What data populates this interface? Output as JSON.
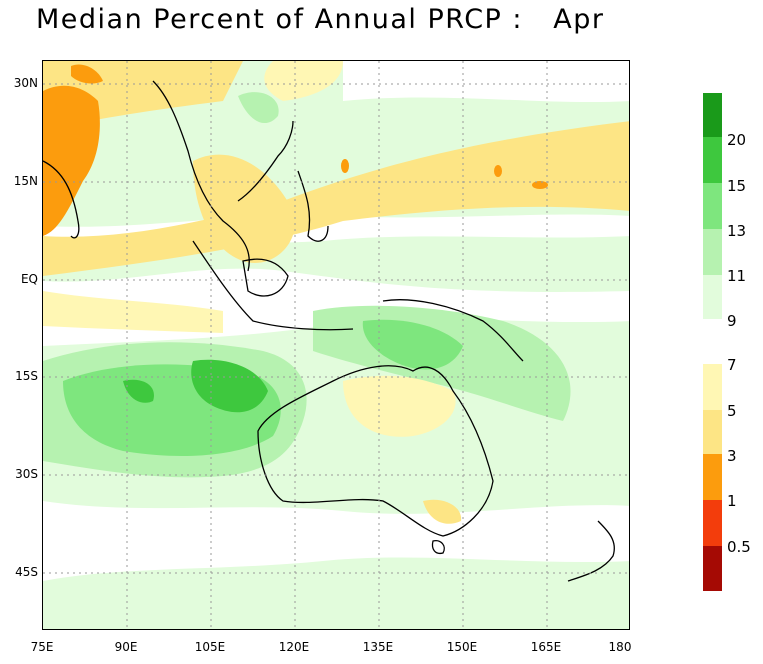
{
  "title": "Median Percent of Annual PRCP :   Apr",
  "map": {
    "lat_labels": [
      "30N",
      "15N",
      "EQ",
      "15S",
      "30S",
      "45S"
    ],
    "lon_labels": [
      "75E",
      "90E",
      "105E",
      "120E",
      "135E",
      "150E",
      "165E",
      "180"
    ],
    "grid": "dotted"
  },
  "colorbar": {
    "wet_labels": [
      "20",
      "15",
      "13",
      "11",
      "9"
    ],
    "dry_labels": [
      "7",
      "5",
      "3",
      "1",
      "0.5"
    ],
    "wet_colors": [
      "#1a9a1a",
      "#3ec83e",
      "#7ee67e",
      "#b6f2b0",
      "#e2fcdc",
      "#ffffff"
    ],
    "dry_colors": [
      "#fff7b4",
      "#fde585",
      "#fc9c0d",
      "#f33d0c",
      "#a50a04"
    ]
  }
}
